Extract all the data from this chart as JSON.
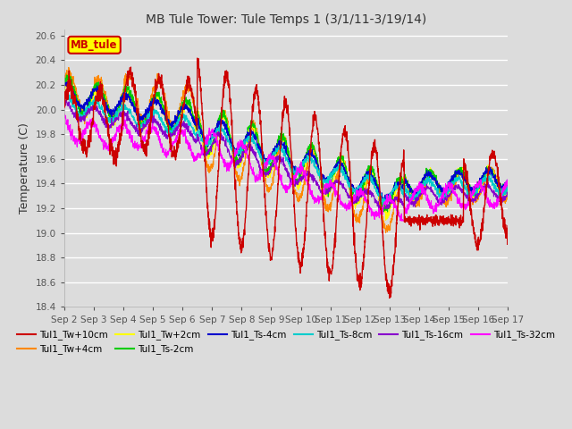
{
  "title": "MB Tule Tower: Tule Temps 1 (3/1/11-3/19/14)",
  "ylabel": "Temperature (C)",
  "ylim": [
    18.4,
    20.65
  ],
  "yticks": [
    18.4,
    18.6,
    18.8,
    19.0,
    19.2,
    19.4,
    19.6,
    19.8,
    20.0,
    20.2,
    20.4,
    20.6
  ],
  "bg_color": "#dcdcdc",
  "plot_bg_color": "#dcdcdc",
  "legend_label": "MB_tule",
  "legend_bg": "#ffff00",
  "legend_border": "#cc0000",
  "xtick_labels": [
    "Sep 2",
    "Sep 3",
    "Sep 4",
    "Sep 5",
    "Sep 6",
    "Sep 7",
    "Sep 8",
    "Sep 9",
    "Sep 10",
    "Sep 11",
    "Sep 12",
    "Sep 13",
    "Sep 14",
    "Sep 15",
    "Sep 16",
    "Sep 17"
  ],
  "series": [
    {
      "label": "Tul1_Tw+10cm",
      "color": "#cc0000"
    },
    {
      "label": "Tul1_Tw+4cm",
      "color": "#ff8800"
    },
    {
      "label": "Tul1_Tw+2cm",
      "color": "#ffff00"
    },
    {
      "label": "Tul1_Ts-2cm",
      "color": "#00cc00"
    },
    {
      "label": "Tul1_Ts-4cm",
      "color": "#0000cc"
    },
    {
      "label": "Tul1_Ts-8cm",
      "color": "#00cccc"
    },
    {
      "label": "Tul1_Ts-16cm",
      "color": "#8800cc"
    },
    {
      "label": "Tul1_Ts-32cm",
      "color": "#ff00ff"
    }
  ]
}
